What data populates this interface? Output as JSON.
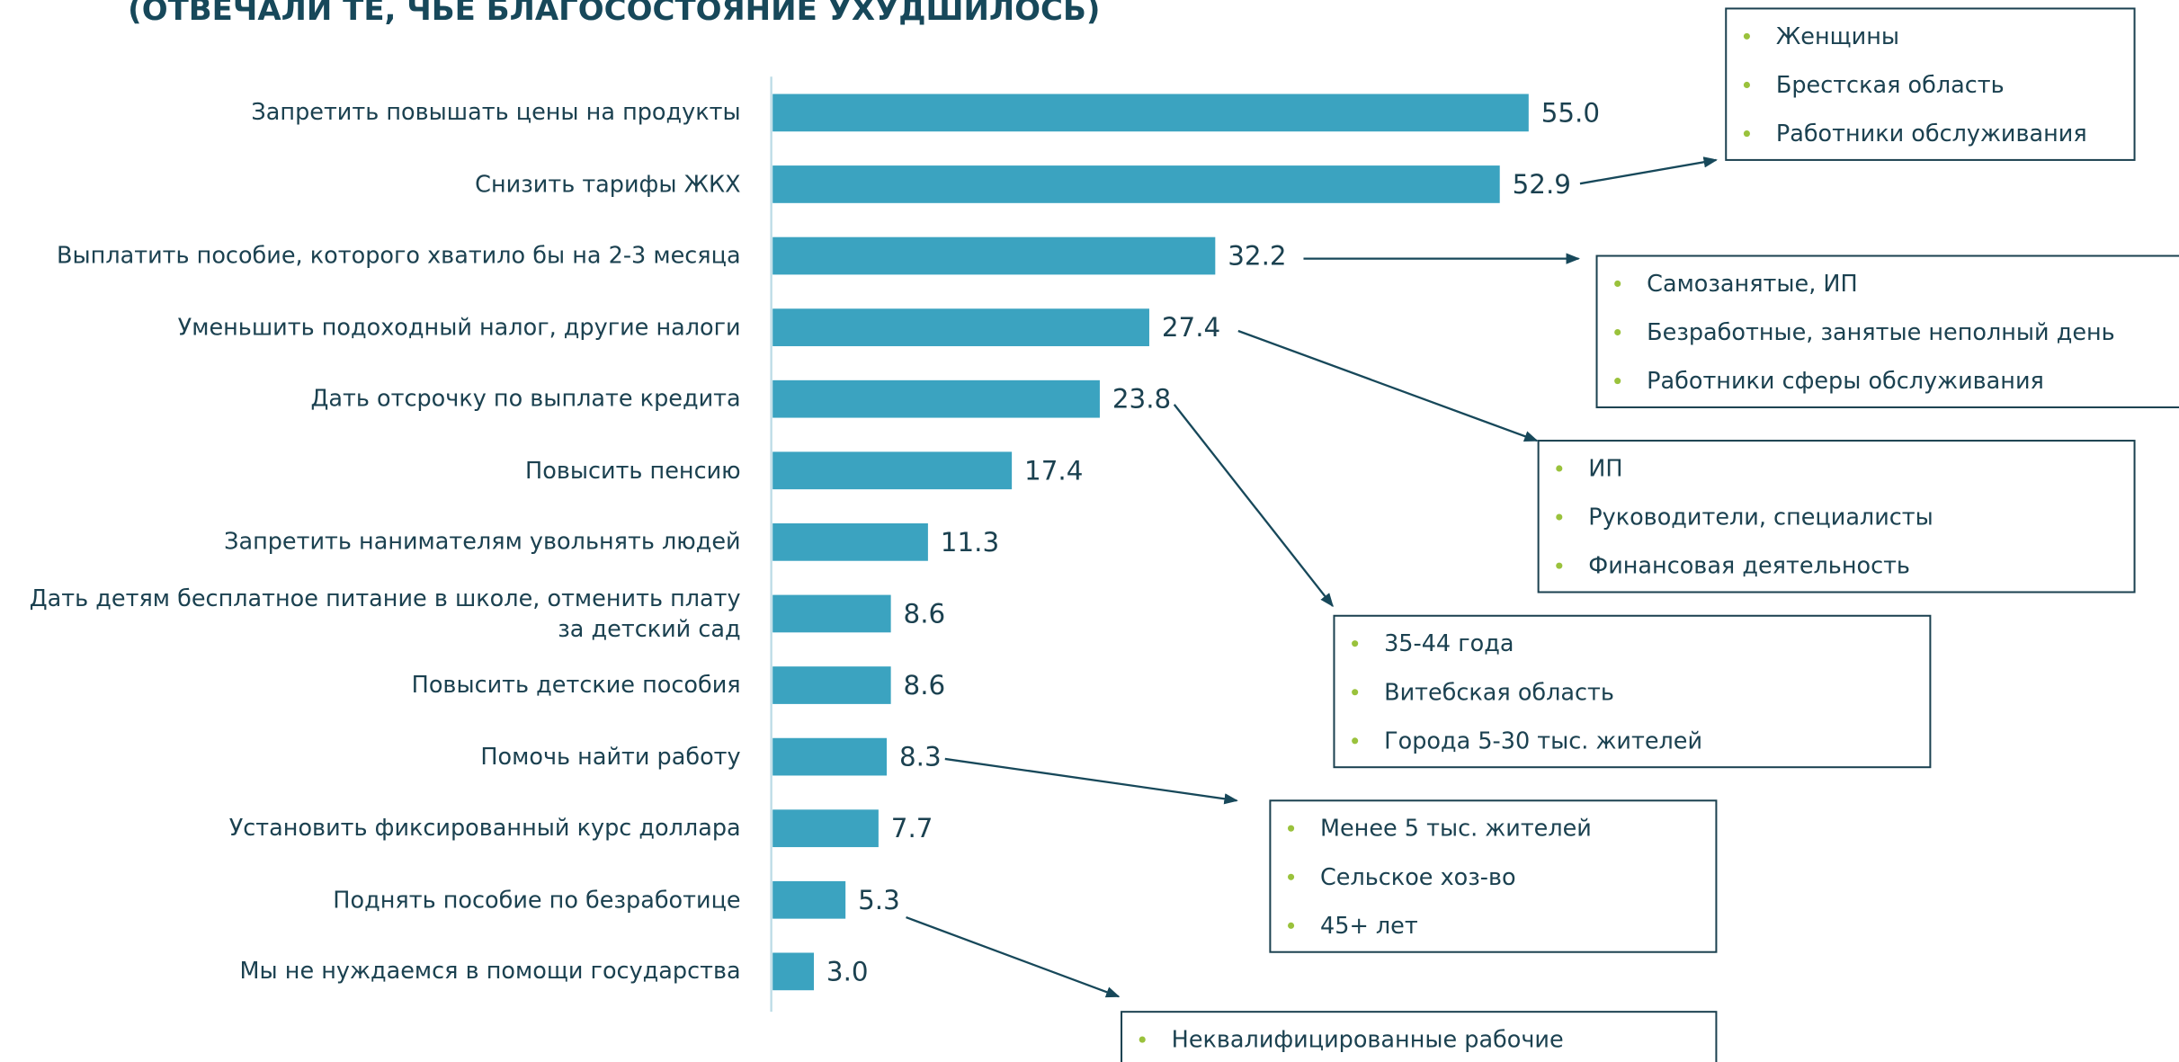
{
  "chart_data": {
    "type": "bar",
    "orientation": "horizontal",
    "title": "(ОТВЕЧАЛИ ТЕ, ЧЬЕ БЛАГОСОСТОЯНИЕ УХУДШИЛОСЬ)",
    "categories": [
      "Запретить повышать цены на продукты",
      "Снизить тарифы ЖКХ",
      "Выплатить пособие, которого хватило бы на 2-3 месяца",
      "Уменьшить подоходный налог, другие налоги",
      "Дать отсрочку по выплате кредита",
      "Повысить пенсию",
      "Запретить нанимателям увольнять людей",
      "Дать детям бесплатное питание в школе, отменить плату за детский сад",
      "Повысить детские пособия",
      "Помочь найти работу",
      "Установить фиксированный курс доллара",
      "Поднять пособие по безработице",
      "Мы не нуждаемся в помощи государства"
    ],
    "values": [
      55.0,
      52.9,
      32.2,
      27.4,
      23.8,
      17.4,
      11.3,
      8.6,
      8.6,
      8.3,
      7.7,
      5.3,
      3.0
    ],
    "value_labels": [
      "55.0",
      "52.9",
      "32.2",
      "27.4",
      "23.8",
      "17.4",
      "11.3",
      "8.6",
      "8.6",
      "8.3",
      "7.7",
      "5.3",
      "3.0"
    ],
    "color": "#3ba3c0",
    "annotations": [
      {
        "items": [
          "Женщины",
          "Брестская область",
          "Работники обслуживания"
        ]
      },
      {
        "items": [
          "Самозанятые, ИП",
          "Безработные, занятые неполный день",
          "Работники сферы обслуживания"
        ]
      },
      {
        "items": [
          "ИП",
          "Руководители, специалисты",
          "Финансовая деятельность"
        ]
      },
      {
        "items": [
          "35-44 года",
          "Витебская область",
          "Города 5-30 тыс. жителей"
        ]
      },
      {
        "items": [
          "Менее 5 тыс. жителей",
          "Сельское хоз-во",
          "45+ лет"
        ]
      },
      {
        "items": [
          "Неквалифицированные рабочие"
        ]
      }
    ]
  }
}
